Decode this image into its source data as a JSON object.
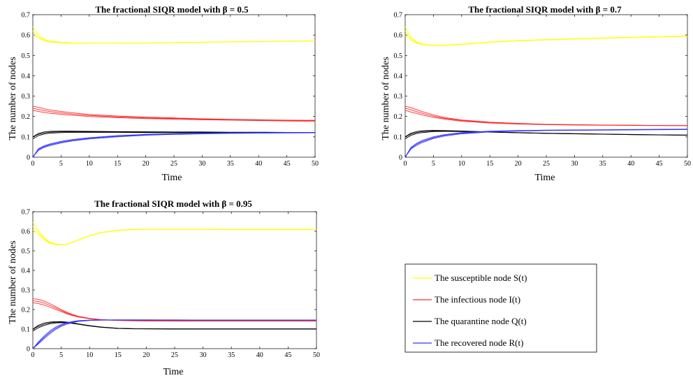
{
  "figure": {
    "legend": {
      "placement": "bottom-right",
      "entries": [
        {
          "label": "The susceptible node S(t)",
          "color": "#ffff00"
        },
        {
          "label": "The infectious node I(t)",
          "color": "#ff2a2a"
        },
        {
          "label": "The quarantine node Q(t)",
          "color": "#000000"
        },
        {
          "label": "The recovered node R(t)",
          "color": "#3333ff"
        }
      ]
    }
  },
  "chart_data": [
    {
      "type": "line",
      "title": "The fractional SIQR model with β = 0.5",
      "xlabel": "Time",
      "ylabel": "The number of nodes",
      "xlim": [
        0,
        50
      ],
      "ylim": [
        0,
        0.7
      ],
      "xticks": [
        0,
        5,
        10,
        15,
        20,
        25,
        30,
        35,
        40,
        45,
        50
      ],
      "yticks": [
        0,
        0.1,
        0.2,
        0.3,
        0.4,
        0.5,
        0.6,
        0.7
      ],
      "grid": false,
      "x": [
        0,
        1,
        2,
        3,
        5,
        7,
        10,
        15,
        20,
        25,
        30,
        35,
        40,
        45,
        50
      ],
      "series": [
        {
          "name": "The susceptible node S(t)",
          "color": "#ffff00",
          "bundle": [
            [
              0.64,
              0.6,
              0.58,
              0.57,
              0.565,
              0.562,
              0.56,
              0.56,
              0.561,
              0.563,
              0.565,
              0.567,
              0.568,
              0.57,
              0.571
            ],
            [
              0.62,
              0.59,
              0.575,
              0.567,
              0.563,
              0.561,
              0.56,
              0.56,
              0.561,
              0.563,
              0.565,
              0.567,
              0.568,
              0.57,
              0.571
            ],
            [
              0.6,
              0.585,
              0.572,
              0.565,
              0.562,
              0.56,
              0.559,
              0.559,
              0.56,
              0.562,
              0.564,
              0.566,
              0.567,
              0.569,
              0.57
            ]
          ]
        },
        {
          "name": "The infectious node I(t)",
          "color": "#ff2a2a",
          "bundle": [
            [
              0.25,
              0.245,
              0.238,
              0.232,
              0.225,
              0.218,
              0.21,
              0.202,
              0.197,
              0.193,
              0.189,
              0.186,
              0.184,
              0.182,
              0.181
            ],
            [
              0.24,
              0.235,
              0.229,
              0.224,
              0.218,
              0.212,
              0.205,
              0.198,
              0.193,
              0.19,
              0.187,
              0.184,
              0.182,
              0.18,
              0.179
            ],
            [
              0.23,
              0.225,
              0.22,
              0.216,
              0.211,
              0.206,
              0.2,
              0.194,
              0.19,
              0.187,
              0.184,
              0.182,
              0.18,
              0.178,
              0.177
            ]
          ]
        },
        {
          "name": "The quarantine node Q(t)",
          "color": "#000000",
          "bundle": [
            [
              0.1,
              0.117,
              0.124,
              0.127,
              0.128,
              0.128,
              0.127,
              0.126,
              0.125,
              0.124,
              0.124,
              0.123,
              0.123,
              0.122,
              0.122
            ],
            [
              0.1,
              0.112,
              0.119,
              0.123,
              0.125,
              0.125,
              0.125,
              0.124,
              0.123,
              0.123,
              0.122,
              0.122,
              0.121,
              0.121,
              0.121
            ],
            [
              0.09,
              0.106,
              0.114,
              0.118,
              0.121,
              0.122,
              0.122,
              0.122,
              0.121,
              0.121,
              0.121,
              0.12,
              0.12,
              0.12,
              0.12
            ]
          ]
        },
        {
          "name": "The recovered node R(t)",
          "color": "#3333ff",
          "bundle": [
            [
              0.0,
              0.042,
              0.056,
              0.065,
              0.078,
              0.087,
              0.096,
              0.106,
              0.112,
              0.116,
              0.118,
              0.12,
              0.121,
              0.122,
              0.122
            ],
            [
              0.0,
              0.038,
              0.052,
              0.061,
              0.074,
              0.083,
              0.093,
              0.103,
              0.11,
              0.114,
              0.117,
              0.119,
              0.12,
              0.121,
              0.121
            ],
            [
              0.0,
              0.034,
              0.048,
              0.057,
              0.07,
              0.08,
              0.09,
              0.1,
              0.108,
              0.112,
              0.115,
              0.117,
              0.118,
              0.119,
              0.12
            ]
          ]
        }
      ]
    },
    {
      "type": "line",
      "title": "The fractional SIQR model with β = 0.7",
      "xlabel": "Time",
      "ylabel": "The number of nodes",
      "xlim": [
        0,
        50
      ],
      "ylim": [
        0,
        0.7
      ],
      "xticks": [
        0,
        5,
        10,
        15,
        20,
        25,
        30,
        35,
        40,
        45,
        50
      ],
      "yticks": [
        0,
        0.1,
        0.2,
        0.3,
        0.4,
        0.5,
        0.6,
        0.7
      ],
      "grid": false,
      "x": [
        0,
        1,
        2,
        3,
        5,
        7,
        10,
        15,
        20,
        25,
        30,
        35,
        40,
        45,
        50
      ],
      "series": [
        {
          "name": "The susceptible node S(t)",
          "color": "#ffff00",
          "bundle": [
            [
              0.64,
              0.59,
              0.567,
              0.557,
              0.55,
              0.551,
              0.556,
              0.566,
              0.573,
              0.578,
              0.582,
              0.586,
              0.589,
              0.592,
              0.596
            ],
            [
              0.62,
              0.583,
              0.563,
              0.555,
              0.549,
              0.55,
              0.555,
              0.565,
              0.572,
              0.577,
              0.581,
              0.585,
              0.588,
              0.591,
              0.595
            ],
            [
              0.6,
              0.575,
              0.56,
              0.553,
              0.548,
              0.549,
              0.554,
              0.564,
              0.571,
              0.576,
              0.58,
              0.584,
              0.587,
              0.59,
              0.594
            ]
          ]
        },
        {
          "name": "The infectious node I(t)",
          "color": "#ff2a2a",
          "bundle": [
            [
              0.25,
              0.244,
              0.234,
              0.224,
              0.208,
              0.195,
              0.183,
              0.172,
              0.166,
              0.162,
              0.16,
              0.158,
              0.157,
              0.156,
              0.156
            ],
            [
              0.24,
              0.233,
              0.224,
              0.216,
              0.202,
              0.191,
              0.18,
              0.17,
              0.165,
              0.161,
              0.159,
              0.158,
              0.157,
              0.156,
              0.155
            ],
            [
              0.23,
              0.222,
              0.215,
              0.208,
              0.196,
              0.187,
              0.177,
              0.168,
              0.163,
              0.16,
              0.158,
              0.157,
              0.156,
              0.155,
              0.155
            ]
          ]
        },
        {
          "name": "The quarantine node Q(t)",
          "color": "#000000",
          "bundle": [
            [
              0.1,
              0.118,
              0.126,
              0.13,
              0.132,
              0.131,
              0.129,
              0.124,
              0.121,
              0.118,
              0.116,
              0.114,
              0.112,
              0.11,
              0.109
            ],
            [
              0.1,
              0.113,
              0.121,
              0.126,
              0.129,
              0.129,
              0.128,
              0.124,
              0.12,
              0.117,
              0.115,
              0.113,
              0.111,
              0.11,
              0.108
            ],
            [
              0.09,
              0.107,
              0.116,
              0.121,
              0.126,
              0.127,
              0.126,
              0.123,
              0.12,
              0.117,
              0.115,
              0.113,
              0.111,
              0.109,
              0.108
            ]
          ]
        },
        {
          "name": "The recovered node R(t)",
          "color": "#3333ff",
          "bundle": [
            [
              0.0,
              0.048,
              0.068,
              0.082,
              0.1,
              0.111,
              0.121,
              0.128,
              0.131,
              0.133,
              0.134,
              0.135,
              0.136,
              0.137,
              0.138
            ],
            [
              0.0,
              0.044,
              0.063,
              0.077,
              0.096,
              0.108,
              0.118,
              0.126,
              0.13,
              0.132,
              0.133,
              0.134,
              0.135,
              0.136,
              0.137
            ],
            [
              0.0,
              0.04,
              0.058,
              0.072,
              0.092,
              0.104,
              0.115,
              0.124,
              0.128,
              0.131,
              0.132,
              0.133,
              0.134,
              0.135,
              0.136
            ]
          ]
        }
      ]
    },
    {
      "type": "line",
      "title": "The fractional SIQR model with β = 0.95",
      "xlabel": "Time",
      "ylabel": "The number of nodes",
      "xlim": [
        0,
        50
      ],
      "ylim": [
        0,
        0.7
      ],
      "xticks": [
        0,
        5,
        10,
        15,
        20,
        25,
        30,
        35,
        40,
        45,
        50
      ],
      "yticks": [
        0,
        0.1,
        0.2,
        0.3,
        0.4,
        0.5,
        0.6,
        0.7
      ],
      "grid": false,
      "x": [
        0,
        1,
        2,
        3,
        4,
        5,
        6,
        7,
        8,
        10,
        12,
        15,
        18,
        20,
        25,
        30,
        35,
        40,
        45,
        50
      ],
      "series": [
        {
          "name": "The susceptible node S(t)",
          "color": "#ffff00",
          "bundle": [
            [
              0.645,
              0.603,
              0.568,
              0.545,
              0.535,
              0.532,
              0.535,
              0.545,
              0.556,
              0.578,
              0.594,
              0.606,
              0.61,
              0.611,
              0.611,
              0.611,
              0.61,
              0.61,
              0.61,
              0.61
            ],
            [
              0.625,
              0.593,
              0.562,
              0.542,
              0.533,
              0.531,
              0.534,
              0.544,
              0.555,
              0.577,
              0.593,
              0.605,
              0.609,
              0.61,
              0.61,
              0.61,
              0.609,
              0.609,
              0.609,
              0.609
            ],
            [
              0.605,
              0.583,
              0.556,
              0.539,
              0.531,
              0.53,
              0.533,
              0.543,
              0.554,
              0.576,
              0.592,
              0.604,
              0.608,
              0.609,
              0.609,
              0.609,
              0.608,
              0.608,
              0.608,
              0.608
            ]
          ]
        },
        {
          "name": "The infectious node I(t)",
          "color": "#ff2a2a",
          "bundle": [
            [
              0.255,
              0.252,
              0.243,
              0.23,
              0.215,
              0.2,
              0.186,
              0.175,
              0.166,
              0.155,
              0.149,
              0.145,
              0.143,
              0.143,
              0.142,
              0.142,
              0.142,
              0.142,
              0.142,
              0.142
            ],
            [
              0.245,
              0.241,
              0.233,
              0.221,
              0.208,
              0.195,
              0.182,
              0.172,
              0.164,
              0.154,
              0.148,
              0.145,
              0.143,
              0.142,
              0.142,
              0.142,
              0.142,
              0.142,
              0.142,
              0.142
            ],
            [
              0.235,
              0.23,
              0.223,
              0.212,
              0.201,
              0.19,
              0.178,
              0.169,
              0.162,
              0.153,
              0.147,
              0.144,
              0.142,
              0.142,
              0.141,
              0.141,
              0.141,
              0.141,
              0.141,
              0.141
            ]
          ]
        },
        {
          "name": "The quarantine node Q(t)",
          "color": "#000000",
          "bundle": [
            [
              0.1,
              0.12,
              0.131,
              0.136,
              0.138,
              0.138,
              0.136,
              0.132,
              0.127,
              0.118,
              0.111,
              0.104,
              0.102,
              0.102,
              0.101,
              0.101,
              0.101,
              0.101,
              0.101,
              0.101
            ],
            [
              0.1,
              0.114,
              0.125,
              0.132,
              0.135,
              0.136,
              0.134,
              0.131,
              0.126,
              0.117,
              0.11,
              0.104,
              0.102,
              0.101,
              0.101,
              0.101,
              0.101,
              0.101,
              0.101,
              0.101
            ],
            [
              0.09,
              0.107,
              0.119,
              0.127,
              0.131,
              0.133,
              0.132,
              0.129,
              0.125,
              0.116,
              0.109,
              0.103,
              0.101,
              0.101,
              0.1,
              0.1,
              0.1,
              0.1,
              0.1,
              0.1
            ]
          ]
        },
        {
          "name": "The recovered node R(t)",
          "color": "#3333ff",
          "bundle": [
            [
              0.0,
              0.035,
              0.065,
              0.09,
              0.11,
              0.124,
              0.133,
              0.139,
              0.143,
              0.146,
              0.147,
              0.147,
              0.147,
              0.147,
              0.147,
              0.146,
              0.146,
              0.146,
              0.146,
              0.146
            ],
            [
              0.0,
              0.03,
              0.058,
              0.083,
              0.104,
              0.119,
              0.129,
              0.136,
              0.141,
              0.145,
              0.146,
              0.147,
              0.147,
              0.147,
              0.146,
              0.146,
              0.146,
              0.146,
              0.146,
              0.146
            ],
            [
              0.0,
              0.025,
              0.051,
              0.076,
              0.098,
              0.114,
              0.125,
              0.133,
              0.139,
              0.144,
              0.146,
              0.146,
              0.146,
              0.146,
              0.146,
              0.146,
              0.146,
              0.146,
              0.146,
              0.146
            ]
          ]
        }
      ]
    }
  ]
}
